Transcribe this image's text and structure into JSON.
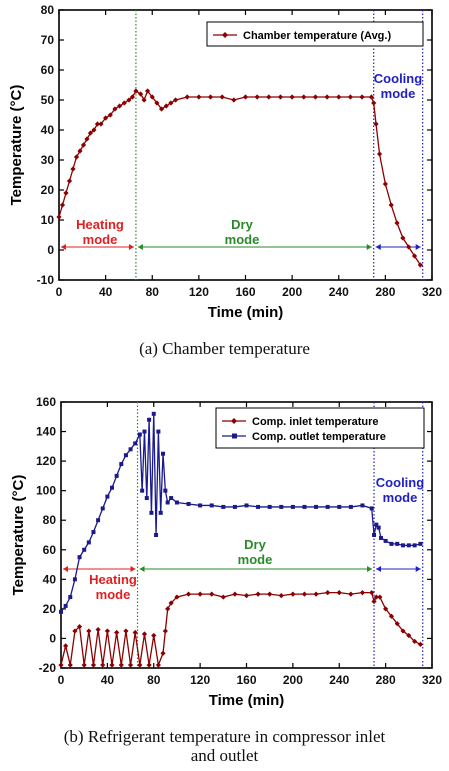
{
  "figure": {
    "caption_a": "(a)  Chamber  temperature",
    "caption_b_line1": "(b)  Refrigerant  temperature  in  compressor  inlet",
    "caption_b_line2": "and  outlet"
  },
  "chart_data": [
    {
      "type": "line",
      "ylabel": "Temperature (°C)",
      "xlabel": "Time (min)",
      "xlim": [
        0,
        320
      ],
      "ylim": [
        -10,
        80
      ],
      "xticks": [
        0,
        40,
        80,
        120,
        160,
        200,
        240,
        280,
        320
      ],
      "yticks": [
        -10,
        0,
        10,
        20,
        30,
        40,
        50,
        60,
        70,
        80
      ],
      "legend_position": "top-right",
      "series": [
        {
          "name": "Chamber temperature (Avg.)",
          "color": "#8b0000",
          "marker": "diamond",
          "x": [
            0,
            3,
            6,
            9,
            12,
            15,
            18,
            21,
            24,
            27,
            30,
            33,
            36,
            40,
            44,
            48,
            52,
            56,
            60,
            63,
            66,
            70,
            73,
            76,
            80,
            84,
            88,
            92,
            96,
            100,
            110,
            120,
            130,
            140,
            150,
            160,
            170,
            180,
            190,
            200,
            210,
            220,
            230,
            240,
            250,
            260,
            268,
            270,
            272,
            275,
            280,
            285,
            290,
            295,
            300,
            305,
            310
          ],
          "y": [
            11,
            15,
            19,
            23,
            27,
            31,
            33,
            35,
            37,
            39,
            40,
            42,
            42,
            44,
            45,
            47,
            48,
            49,
            50,
            51,
            53,
            52,
            50,
            53,
            51,
            49,
            47,
            48,
            49,
            50,
            51,
            51,
            51,
            51,
            50,
            51,
            51,
            51,
            51,
            51,
            51,
            51,
            51,
            51,
            51,
            51,
            51,
            49,
            42,
            32,
            22,
            15,
            9,
            4,
            1,
            -2,
            -5
          ]
        }
      ],
      "phases": [
        {
          "label": "Heating mode",
          "start": 0,
          "end": 66,
          "color": "#e02020"
        },
        {
          "label": "Dry mode",
          "start": 66,
          "end": 270,
          "color": "#2a8a2a"
        },
        {
          "label": "Cooling mode",
          "start": 270,
          "end": 312,
          "color": "#2020c0"
        }
      ],
      "phase_arrow_y": 1
    },
    {
      "type": "line",
      "ylabel": "Temperature (°C)",
      "xlabel": "Time (min)",
      "xlim": [
        0,
        320
      ],
      "ylim": [
        -20,
        160
      ],
      "xticks": [
        0,
        40,
        80,
        120,
        160,
        200,
        240,
        280,
        320
      ],
      "yticks": [
        -20,
        0,
        20,
        40,
        60,
        80,
        100,
        120,
        140,
        160
      ],
      "legend_position": "top-right",
      "series": [
        {
          "name": "Comp. inlet temperature",
          "color": "#8b0000",
          "marker": "diamond",
          "x": [
            0,
            4,
            8,
            12,
            16,
            20,
            24,
            28,
            32,
            36,
            40,
            44,
            48,
            52,
            56,
            60,
            64,
            68,
            72,
            76,
            80,
            84,
            88,
            90,
            92,
            95,
            100,
            110,
            120,
            130,
            140,
            150,
            160,
            170,
            180,
            190,
            200,
            210,
            220,
            230,
            240,
            250,
            260,
            268,
            270,
            272,
            275,
            280,
            285,
            290,
            295,
            300,
            305,
            310
          ],
          "y": [
            -18,
            -5,
            -18,
            5,
            8,
            -18,
            5,
            -18,
            6,
            -18,
            5,
            -18,
            4,
            -18,
            5,
            -18,
            4,
            -18,
            3,
            -18,
            2,
            -18,
            -10,
            5,
            20,
            24,
            28,
            30,
            30,
            30,
            28,
            30,
            29,
            30,
            30,
            29,
            30,
            30,
            30,
            31,
            31,
            30,
            31,
            31,
            25,
            28,
            28,
            20,
            15,
            10,
            5,
            2,
            -2,
            -4
          ]
        },
        {
          "name": "Comp. outlet temperature",
          "color": "#1a1a8c",
          "marker": "square",
          "x": [
            0,
            4,
            8,
            12,
            16,
            20,
            24,
            28,
            32,
            36,
            40,
            44,
            48,
            52,
            56,
            60,
            64,
            68,
            70,
            72,
            74,
            76,
            78,
            80,
            82,
            84,
            86,
            88,
            90,
            92,
            95,
            100,
            110,
            120,
            130,
            140,
            150,
            160,
            170,
            180,
            190,
            200,
            210,
            220,
            230,
            240,
            250,
            260,
            268,
            270,
            272,
            274,
            276,
            280,
            285,
            290,
            295,
            300,
            305,
            310
          ],
          "y": [
            18,
            22,
            28,
            40,
            55,
            60,
            65,
            72,
            80,
            88,
            96,
            102,
            110,
            118,
            124,
            128,
            132,
            138,
            100,
            140,
            95,
            148,
            85,
            152,
            70,
            140,
            85,
            125,
            100,
            92,
            95,
            92,
            91,
            90,
            90,
            89,
            89,
            90,
            89,
            89,
            89,
            89,
            89,
            89,
            89,
            89,
            89,
            90,
            88,
            70,
            77,
            75,
            68,
            66,
            64,
            64,
            63,
            63,
            63,
            64
          ]
        }
      ],
      "phases": [
        {
          "label": "Heating mode",
          "start": 0,
          "end": 66,
          "color": "#e02020"
        },
        {
          "label": "Dry mode",
          "start": 66,
          "end": 270,
          "color": "#2a8a2a"
        },
        {
          "label": "Cooling mode",
          "start": 270,
          "end": 312,
          "color": "#2020c0"
        }
      ],
      "phase_arrow_y": 47
    }
  ]
}
